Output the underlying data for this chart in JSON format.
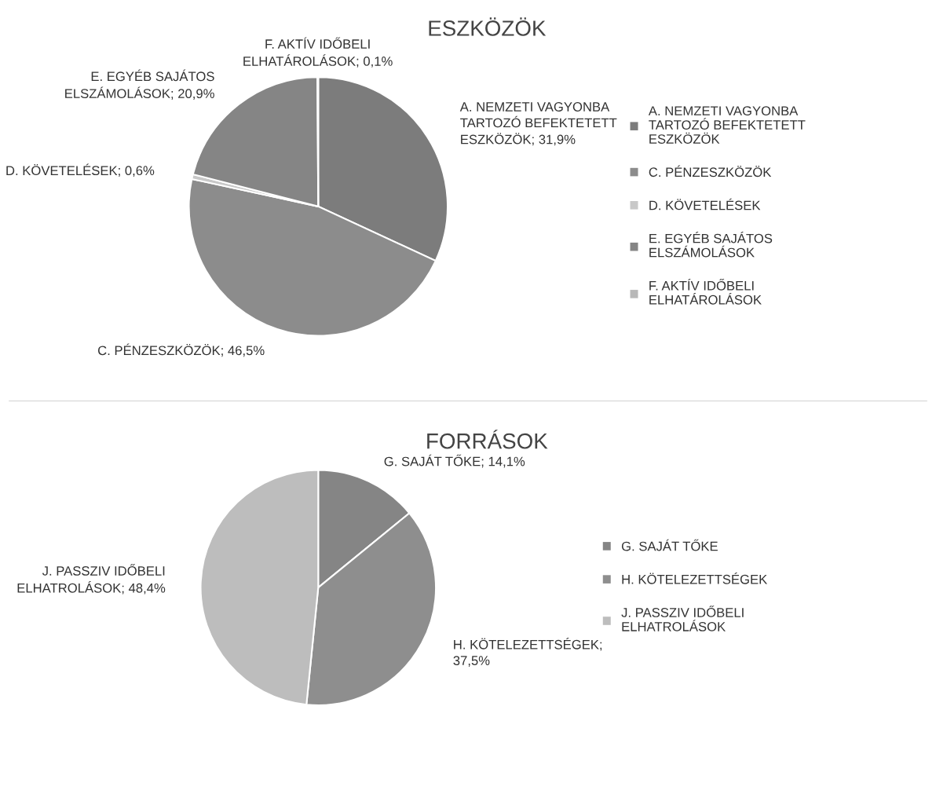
{
  "chart_data": [
    {
      "type": "pie",
      "title": "ESZKÖZÖK",
      "categories": [
        "A. NEMZETI VAGYONBA TARTOZÓ BEFEKTETETT ESZKÖZÖK",
        "C. PÉNZESZKÖZÖK",
        "D. KÖVETELÉSEK",
        "E. EGYÉB SAJÁTOS ELSZÁMOLÁSOK",
        "F. AKTÍV IDŐBELI ELHATÁROLÁSOK"
      ],
      "values": [
        31.9,
        46.5,
        0.6,
        20.9,
        0.1
      ],
      "value_labels": [
        "; 31,9%",
        "; 46,5%",
        "; 0,6%",
        "; 20,9%",
        "; 0,1%"
      ],
      "colors": [
        "#7c7c7c",
        "#8c8c8c",
        "#c8c8c8",
        "#858585",
        "#b8b8b8"
      ],
      "legend": "right"
    },
    {
      "type": "pie",
      "title": "FORRÁSOK",
      "categories": [
        "G. SAJÁT TŐKE",
        "H. KÖTELEZETTSÉGEK",
        "J. PASSZIV IDŐBELI ELHATROLÁSOK"
      ],
      "values": [
        14.1,
        37.5,
        48.4
      ],
      "value_labels": [
        "; 14,1%",
        "; 37,5%",
        "; 48,4%"
      ],
      "colors": [
        "#858585",
        "#8e8e8e",
        "#bdbdbd"
      ],
      "legend": "right"
    }
  ]
}
